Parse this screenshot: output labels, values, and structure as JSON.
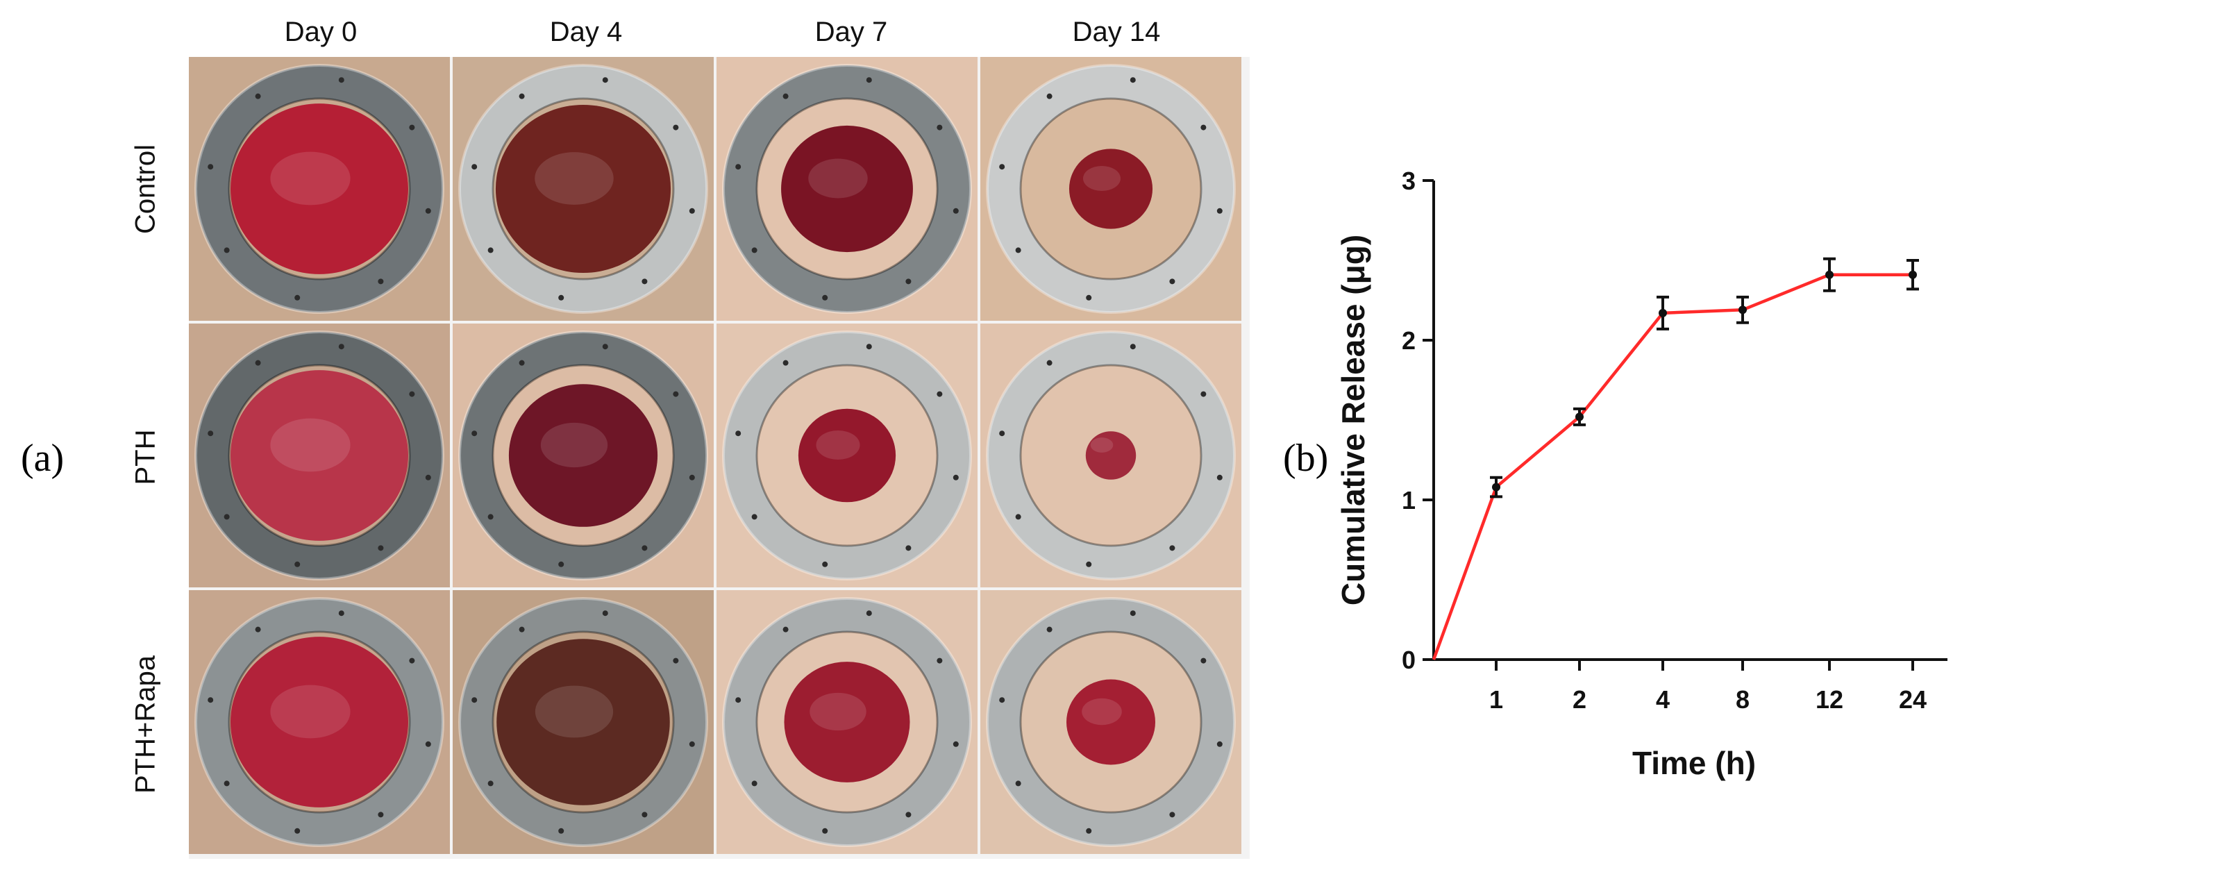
{
  "figure": {
    "panel_a_label": "(a)",
    "panel_b_label": "(b)"
  },
  "panel_a": {
    "columns": [
      "Day 0",
      "Day 4",
      "Day 7",
      "Day 14"
    ],
    "rows": [
      "Control",
      "PTH",
      "PTH+Rapa"
    ],
    "wound_images": [
      [
        {
          "ring": "#6e7477",
          "skin": "#c8a98f",
          "wound": "#b51f35",
          "wound_coverage": 1.0
        },
        {
          "ring": "#bfc2c2",
          "skin": "#c9ad94",
          "wound": "#6f2420",
          "wound_coverage": 0.97
        },
        {
          "ring": "#7f8587",
          "skin": "#e2c3ad",
          "wound": "#7a1424",
          "wound_coverage": 0.55
        },
        {
          "ring": "#c9cbcb",
          "skin": "#d8b99e",
          "wound": "#8b1b26",
          "wound_coverage": 0.22
        }
      ],
      [
        {
          "ring": "#62686a",
          "skin": "#c6a68e",
          "wound": "#b8354a",
          "wound_coverage": 1.0
        },
        {
          "ring": "#6d7375",
          "skin": "#dcbca5",
          "wound": "#6e1627",
          "wound_coverage": 0.7
        },
        {
          "ring": "#b9bcbc",
          "skin": "#e3c6b1",
          "wound": "#94182c",
          "wound_coverage": 0.3
        },
        {
          "ring": "#c2c5c5",
          "skin": "#e1c3ad",
          "wound": "#a02a3c",
          "wound_coverage": 0.08
        }
      ],
      [
        {
          "ring": "#8c9294",
          "skin": "#c6a68e",
          "wound": "#b2223a",
          "wound_coverage": 1.0
        },
        {
          "ring": "#8a8f90",
          "skin": "#bfa187",
          "wound": "#5c2a22",
          "wound_coverage": 0.95
        },
        {
          "ring": "#a9adae",
          "skin": "#e2c5b0",
          "wound": "#9c1d30",
          "wound_coverage": 0.5
        },
        {
          "ring": "#aeb2b3",
          "skin": "#dfc3ad",
          "wound": "#a41f33",
          "wound_coverage": 0.25
        }
      ]
    ]
  },
  "chart_data": {
    "type": "line",
    "categories": [
      "1",
      "2",
      "4",
      "8",
      "12",
      "24"
    ],
    "x_origin_value": 0,
    "series": [
      {
        "color": "#ff2a2a",
        "values": [
          1.08,
          1.52,
          2.17,
          2.19,
          2.41,
          2.41
        ],
        "errors": [
          0.06,
          0.05,
          0.1,
          0.08,
          0.1,
          0.09
        ]
      }
    ],
    "xlabel": "Time (h)",
    "ylabel": "Cumulative Release (μg)",
    "ylim": [
      0,
      3
    ],
    "yticks": [
      "0",
      "1",
      "2",
      "3"
    ],
    "grid": false,
    "legend": "none"
  }
}
